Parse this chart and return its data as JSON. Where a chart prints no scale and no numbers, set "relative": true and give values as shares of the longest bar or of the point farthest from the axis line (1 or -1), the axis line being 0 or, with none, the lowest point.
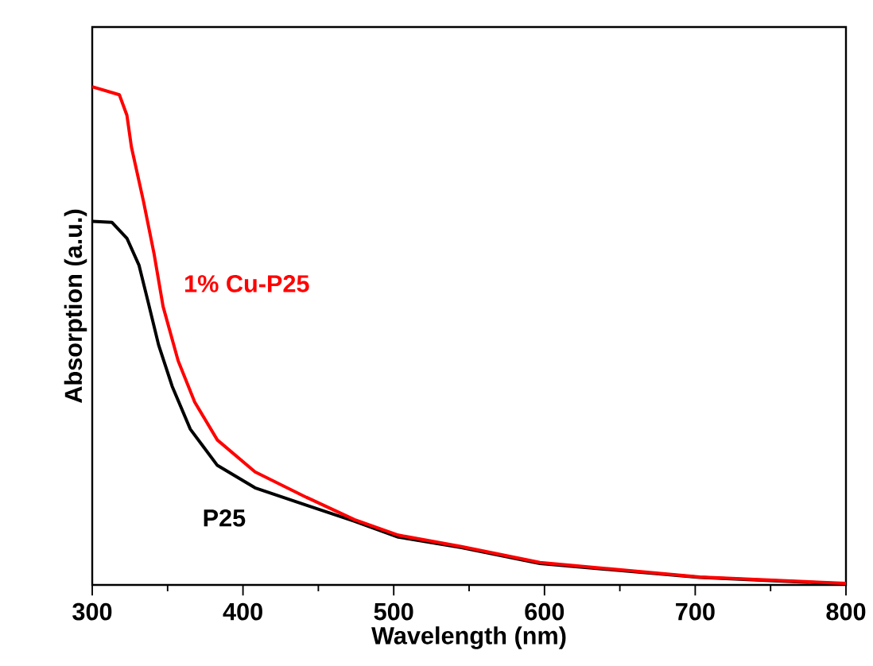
{
  "chart_data": {
    "type": "line",
    "relative": true,
    "xlabel": "Wavelength (nm)",
    "ylabel": "Absorption (a.u.)",
    "xlim": [
      300,
      800
    ],
    "xticks": [
      300,
      400,
      500,
      600,
      700,
      800
    ],
    "legend": false,
    "marker": "none",
    "line_style": "solid",
    "grid": false,
    "tick_labels": "x",
    "series": [
      {
        "name": "1% Cu-P25",
        "color": "#ff0000",
        "x": [
          300,
          318,
          323,
          326,
          334,
          341,
          347,
          357,
          368,
          383,
          408,
          442,
          474,
          503,
          545,
          597,
          703,
          800
        ],
        "values": [
          1.0,
          0.984,
          0.943,
          0.879,
          0.77,
          0.665,
          0.559,
          0.45,
          0.367,
          0.291,
          0.227,
          0.176,
          0.131,
          0.1,
          0.077,
          0.045,
          0.016,
          0.003
        ]
      },
      {
        "name": "P25",
        "color": "#000000",
        "x": [
          300,
          313,
          323,
          331,
          337,
          344,
          353,
          365,
          383,
          408,
          442,
          474,
          503,
          545,
          597,
          703,
          800
        ],
        "values": [
          0.73,
          0.728,
          0.696,
          0.642,
          0.569,
          0.482,
          0.399,
          0.313,
          0.24,
          0.195,
          0.16,
          0.128,
          0.096,
          0.075,
          0.043,
          0.015,
          0.002
        ]
      }
    ]
  }
}
